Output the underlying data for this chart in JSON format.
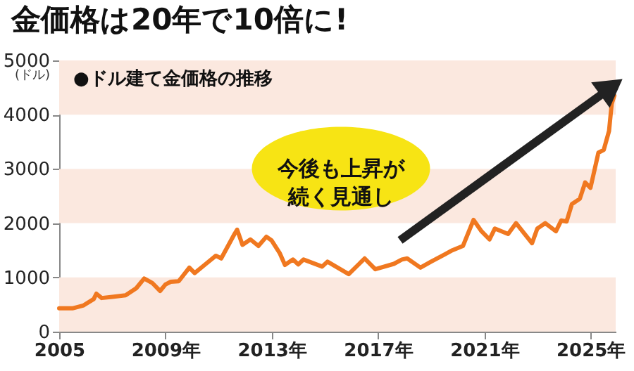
{
  "chart_data": {
    "type": "line",
    "title": "金価格は20年で10倍に!",
    "subtitle": "●ドル建て金価格の推移",
    "ylabel": "(ドル)",
    "annotations": [
      "今後も上昇が続く見通し"
    ],
    "x": [
      2005.0,
      2005.5,
      2005.9,
      2006.3,
      2006.4,
      2006.6,
      2007.0,
      2007.5,
      2007.9,
      2008.2,
      2008.5,
      2008.8,
      2009.0,
      2009.2,
      2009.5,
      2009.9,
      2010.1,
      2010.5,
      2010.9,
      2011.1,
      2011.6,
      2011.7,
      2011.9,
      2012.2,
      2012.5,
      2012.8,
      2013.0,
      2013.3,
      2013.5,
      2013.8,
      2014.0,
      2014.2,
      2014.9,
      2015.1,
      2015.9,
      2016.5,
      2016.9,
      2017.6,
      2017.9,
      2018.1,
      2018.6,
      2019.0,
      2019.5,
      2019.8,
      2020.2,
      2020.6,
      2020.9,
      2021.2,
      2021.4,
      2021.9,
      2022.2,
      2022.8,
      2023.0,
      2023.3,
      2023.7,
      2023.9,
      2024.1,
      2024.3,
      2024.6,
      2024.8,
      2025.0,
      2025.3,
      2025.5,
      2025.7,
      2025.8,
      2025.9
    ],
    "series": [
      {
        "color": "#f07820",
        "values": [
          430,
          430,
          480,
          600,
          700,
          620,
          640,
          670,
          800,
          980,
          900,
          750,
          870,
          920,
          930,
          1180,
          1080,
          1240,
          1400,
          1350,
          1800,
          1880,
          1600,
          1700,
          1580,
          1750,
          1680,
          1450,
          1230,
          1330,
          1240,
          1330,
          1200,
          1290,
          1060,
          1350,
          1150,
          1250,
          1330,
          1350,
          1180,
          1290,
          1420,
          1500,
          1580,
          2060,
          1850,
          1700,
          1900,
          1800,
          2000,
          1630,
          1900,
          2000,
          1850,
          2050,
          2030,
          2350,
          2450,
          2750,
          2650,
          3300,
          3350,
          3700,
          4200,
          4350
        ]
      }
    ],
    "xlim": [
      2005,
      2025.95
    ],
    "xticks": [
      2005,
      {
        "value": 2009,
        "label": "2009年"
      },
      {
        "value": 2013,
        "label": "2013年"
      },
      {
        "value": 2017,
        "label": "2017年"
      },
      {
        "value": 2021,
        "label": "2021年"
      },
      {
        "value": 2025,
        "label": "2025年"
      }
    ],
    "ylim": [
      0,
      5000
    ],
    "yticks": [
      0,
      1000,
      2000,
      3000,
      4000,
      5000
    ],
    "bands": [
      {
        "axis": "y",
        "from": 0,
        "to": 1000,
        "color": "#fbe8df"
      },
      {
        "axis": "y",
        "from": 2000,
        "to": 3000,
        "color": "#fbe8df"
      },
      {
        "axis": "y",
        "from": 4000,
        "to": 5000,
        "color": "#fbe8df"
      }
    ],
    "grid": false,
    "marker": "none",
    "line_style": "solid"
  }
}
